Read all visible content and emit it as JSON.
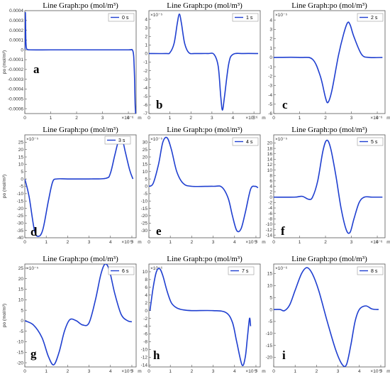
{
  "chart_data": [
    {
      "panel": "a",
      "type": "line",
      "title": "Line Graph:po (mol/m³)",
      "ylabel": "po (mol/m³)",
      "y_scale_label": "",
      "x_scale_label": "×10⁻⁶",
      "x_unit": "m",
      "xlim": [
        0,
        4.3
      ],
      "ylim": [
        -0.00065,
        0.0004
      ],
      "xticks": [
        0,
        1,
        2,
        3,
        4
      ],
      "yticks": [
        0.0004,
        0.0003,
        0.0002,
        0.0001,
        0,
        -0.0001,
        -0.0002,
        -0.0003,
        -0.0004,
        -0.0005,
        -0.0006
      ],
      "yticklabels": [
        "0.0004",
        "0.0003",
        "0.0002",
        "0.0001",
        "0",
        "-0.0001",
        "-0.0002",
        "-0.0003",
        "-0.0004",
        "-0.0005",
        "-0.0006"
      ],
      "series": [
        {
          "name": "0 s",
          "x": [
            0,
            0.02,
            0.04,
            0.06,
            0.1,
            0.2,
            1,
            2,
            3,
            4,
            4.15,
            4.2,
            4.22,
            4.24,
            4.26,
            4.28
          ],
          "y": [
            0,
            0.00038,
            0.0001,
            2e-05,
            5e-06,
            0,
            0,
            0,
            0,
            0,
            0,
            -5e-05,
            -0.00015,
            -0.0003,
            -0.00055,
            -0.00065
          ]
        }
      ]
    },
    {
      "panel": "b",
      "type": "line",
      "title": "Line Graph:po (mol/m³)",
      "ylabel": "",
      "y_scale_label": "×10⁻⁵",
      "x_scale_label": "×10⁻⁶",
      "x_unit": "m",
      "xlim": [
        0,
        5.3
      ],
      "ylim": [
        -7,
        5
      ],
      "xticks": [
        0,
        1,
        2,
        3,
        4,
        5
      ],
      "yticks": [
        4,
        3,
        2,
        1,
        0,
        -1,
        -2,
        -3,
        -4,
        -5,
        -6,
        -7
      ],
      "yticklabels": [
        "4",
        "3",
        "2",
        "1",
        "0",
        "-1",
        "-2",
        "-3",
        "-4",
        "-5",
        "-6",
        "-7"
      ],
      "series": [
        {
          "name": "1 s",
          "x": [
            0,
            0.8,
            1.0,
            1.2,
            1.35,
            1.45,
            1.55,
            1.7,
            1.9,
            2.2,
            2.8,
            3.1,
            3.3,
            3.42,
            3.5,
            3.6,
            3.8,
            4.0,
            4.5,
            5.2
          ],
          "y": [
            0,
            0,
            0.1,
            1.2,
            3.5,
            4.6,
            3.5,
            1.2,
            0.1,
            0,
            0,
            -0.1,
            -1.5,
            -5,
            -6.6,
            -5,
            -1.2,
            -0.1,
            0,
            0
          ]
        }
      ]
    },
    {
      "panel": "c",
      "type": "line",
      "title": "Line Graph:po (mol/m³)",
      "ylabel": "",
      "y_scale_label": "×10⁻⁵",
      "x_scale_label": "×10⁻⁶",
      "x_unit": "m",
      "xlim": [
        0,
        4.3
      ],
      "ylim": [
        -6,
        5
      ],
      "xticks": [
        0,
        1,
        2,
        3,
        4
      ],
      "yticks": [
        4,
        3,
        2,
        1,
        0,
        -1,
        -2,
        -3,
        -4,
        -5,
        -6
      ],
      "yticklabels": [
        "4",
        "3",
        "2",
        "1",
        "0",
        "-1",
        "-2",
        "-3",
        "-4",
        "-5",
        "-6"
      ],
      "series": [
        {
          "name": "2 s",
          "x": [
            0,
            1.0,
            1.5,
            1.8,
            2.0,
            2.1,
            2.25,
            2.5,
            2.7,
            2.85,
            2.95,
            3.1,
            3.4,
            3.7,
            4.2
          ],
          "y": [
            0,
            0,
            -0.2,
            -2,
            -4.3,
            -4.8,
            -3.5,
            0.2,
            2.5,
            3.7,
            3.5,
            2.2,
            0.3,
            0,
            0
          ]
        }
      ]
    },
    {
      "panel": "d",
      "type": "line",
      "title": "Line Graph:po (mol/m³)",
      "ylabel": "po (mol/m³)",
      "y_scale_label": "×10⁻⁵",
      "x_scale_label": "×10⁻⁶",
      "x_unit": "m",
      "xlim": [
        0,
        5.2
      ],
      "ylim": [
        -40,
        30
      ],
      "xticks": [
        0,
        1,
        2,
        3,
        4,
        5
      ],
      "yticks": [
        25,
        20,
        15,
        10,
        5,
        0,
        -5,
        -10,
        -15,
        -20,
        -25,
        -30,
        -35,
        -40
      ],
      "yticklabels": [
        "25",
        "20",
        "15",
        "10",
        "5",
        "0",
        "-5",
        "-10",
        "-15",
        "-20",
        "-25",
        "-30",
        "-35",
        "-40"
      ],
      "series": [
        {
          "name": "3 s",
          "x": [
            0,
            0.2,
            0.45,
            0.65,
            0.85,
            1.1,
            1.3,
            1.5,
            2.0,
            3.0,
            3.8,
            4.0,
            4.2,
            4.4,
            4.55,
            4.7,
            4.9,
            5.05
          ],
          "y": [
            0,
            -12,
            -35,
            -39,
            -34,
            -15,
            -2,
            0,
            0,
            0,
            0.5,
            4,
            16,
            27,
            27,
            18,
            6,
            0
          ]
        }
      ]
    },
    {
      "panel": "e",
      "type": "line",
      "title": "Line Graph:po (mol/m³)",
      "ylabel": "",
      "y_scale_label": "×10⁻⁵",
      "x_scale_label": "×10⁻⁶",
      "x_unit": "m",
      "xlim": [
        0,
        5.2
      ],
      "ylim": [
        -35,
        35
      ],
      "xticks": [
        0,
        1,
        2,
        3,
        4,
        5
      ],
      "yticks": [
        30,
        25,
        20,
        15,
        10,
        5,
        0,
        -5,
        -10,
        -15,
        -20,
        -25,
        -30
      ],
      "yticklabels": [
        "30",
        "25",
        "20",
        "15",
        "10",
        "5",
        "0",
        "-5",
        "-10",
        "-15",
        "-20",
        "-25",
        "-30"
      ],
      "series": [
        {
          "name": "4 s",
          "x": [
            0,
            0.2,
            0.45,
            0.65,
            0.85,
            1.05,
            1.3,
            1.6,
            2.0,
            3.0,
            3.4,
            3.7,
            3.9,
            4.1,
            4.3,
            4.5,
            4.75,
            4.95,
            5.1
          ],
          "y": [
            0,
            2,
            15,
            30,
            33,
            25,
            10,
            2,
            0,
            0,
            -0.5,
            -8,
            -20,
            -30,
            -29,
            -18,
            -2,
            0,
            -1
          ]
        }
      ]
    },
    {
      "panel": "f",
      "type": "line",
      "title": "Line Graph:po (mol/m³)",
      "ylabel": "",
      "y_scale_label": "×10⁻⁵",
      "x_scale_label": "×10⁻⁶",
      "x_unit": "m",
      "xlim": [
        0,
        4.3
      ],
      "ylim": [
        -15,
        23
      ],
      "xticks": [
        0,
        1,
        2,
        3,
        4
      ],
      "yticks": [
        20,
        18,
        16,
        14,
        12,
        10,
        8,
        6,
        4,
        2,
        0,
        -2,
        -4,
        -6,
        -8,
        -10,
        -12,
        -14
      ],
      "yticklabels": [
        "20",
        "18",
        "16",
        "14",
        "12",
        "10",
        "8",
        "6",
        "4",
        "2",
        "0",
        "-2",
        "-4",
        "-6",
        "-8",
        "-10",
        "-12",
        "-14"
      ],
      "series": [
        {
          "name": "5 s",
          "x": [
            0,
            0.8,
            1.1,
            1.35,
            1.5,
            1.7,
            1.9,
            2.05,
            2.2,
            2.4,
            2.6,
            2.8,
            2.95,
            3.1,
            3.3,
            3.5,
            3.8,
            4.2
          ],
          "y": [
            0,
            0,
            0.3,
            -0.8,
            0,
            6,
            17,
            21,
            18,
            8,
            -4,
            -12,
            -13,
            -8,
            -2,
            0,
            0,
            0
          ]
        }
      ]
    },
    {
      "panel": "g",
      "type": "line",
      "title": "Line Graph:po (mol/m³)",
      "ylabel": "po (mol/m³)",
      "y_scale_label": "×10⁻⁵",
      "x_scale_label": "×10⁻⁶",
      "x_unit": "m",
      "xlim": [
        0,
        5.2
      ],
      "ylim": [
        -22,
        27
      ],
      "xticks": [
        0,
        1,
        2,
        3,
        4,
        5
      ],
      "yticks": [
        25,
        20,
        15,
        10,
        5,
        0,
        -5,
        -10,
        -15,
        -20
      ],
      "yticklabels": [
        "25",
        "20",
        "15",
        "10",
        "5",
        "0",
        "-5",
        "-10",
        "-15",
        "-20"
      ],
      "series": [
        {
          "name": "6 s",
          "x": [
            0,
            0.4,
            0.8,
            1.1,
            1.35,
            1.6,
            1.85,
            2.1,
            2.4,
            2.7,
            3.0,
            3.3,
            3.55,
            3.75,
            3.95,
            4.2,
            4.5,
            4.8,
            5.0
          ],
          "y": [
            0,
            -2,
            -8,
            -17,
            -21,
            -15,
            -5,
            0.5,
            0,
            -2,
            -1,
            10,
            22,
            27,
            24,
            13,
            3,
            0,
            -0.5
          ]
        }
      ]
    },
    {
      "panel": "h",
      "type": "line",
      "title": "Line Graph:po (mol/m³)",
      "ylabel": "",
      "y_scale_label": "×10⁻⁶",
      "x_scale_label": "×10⁻⁶",
      "x_unit": "m",
      "xlim": [
        0,
        5.2
      ],
      "ylim": [
        -14.5,
        12
      ],
      "xticks": [
        0,
        1,
        2,
        3,
        4,
        5
      ],
      "yticks": [
        10,
        8,
        6,
        4,
        2,
        0,
        -2,
        -4,
        -6,
        -8,
        -10,
        -12,
        -14
      ],
      "yticklabels": [
        "10",
        "8",
        "6",
        "4",
        "2",
        "0",
        "-2",
        "-4",
        "-6",
        "-8",
        "-10",
        "-12",
        "-14"
      ],
      "series": [
        {
          "name": "7 s",
          "x": [
            0.05,
            0.2,
            0.35,
            0.5,
            0.65,
            0.85,
            1.05,
            1.3,
            1.6,
            2.0,
            3.0,
            3.6,
            3.9,
            4.1,
            4.35,
            4.5,
            4.6,
            4.7,
            4.75
          ],
          "y": [
            0,
            6,
            10,
            10.8,
            9,
            5,
            2,
            0.7,
            0.2,
            0,
            0,
            -0.5,
            -3,
            -8,
            -14,
            -12,
            -7,
            -2,
            -4
          ]
        }
      ]
    },
    {
      "panel": "i",
      "type": "line",
      "title": "Line Graph:po (mol/m³)",
      "ylabel": "",
      "y_scale_label": "×10⁻⁶",
      "x_scale_label": "×10⁻⁶",
      "x_unit": "m",
      "xlim": [
        0,
        5.2
      ],
      "ylim": [
        -24,
        19
      ],
      "xticks": [
        0,
        1,
        2,
        3,
        4,
        5
      ],
      "yticks": [
        15,
        10,
        5,
        0,
        -5,
        -10,
        -15,
        -20
      ],
      "yticklabels": [
        "15",
        "10",
        "5",
        "0",
        "-5",
        "-10",
        "-15",
        "-20"
      ],
      "series": [
        {
          "name": "8 s",
          "x": [
            0,
            0.3,
            0.5,
            0.75,
            1.0,
            1.3,
            1.55,
            1.8,
            2.1,
            2.5,
            2.9,
            3.2,
            3.4,
            3.6,
            3.8,
            4.0,
            4.3,
            4.6,
            4.9
          ],
          "y": [
            0,
            0,
            -0.5,
            2,
            8,
            15,
            17.5,
            15,
            8,
            -5,
            -17,
            -23,
            -23,
            -15,
            -5,
            0,
            1.5,
            0.2,
            0
          ]
        }
      ]
    }
  ]
}
